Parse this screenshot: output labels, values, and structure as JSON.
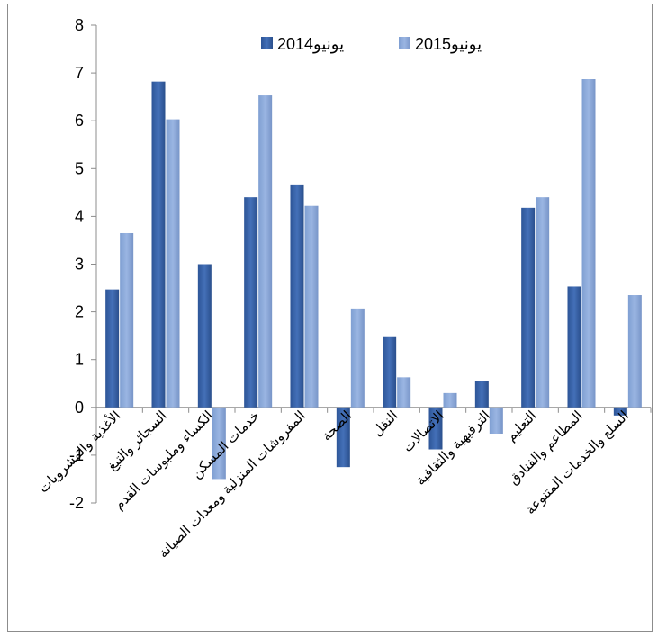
{
  "chart_data": {
    "type": "bar",
    "title": "",
    "xlabel": "",
    "ylabel": "",
    "ylim": [
      -2,
      8
    ],
    "yticks": [
      -2,
      -1,
      0,
      1,
      2,
      3,
      4,
      5,
      6,
      7,
      8
    ],
    "grid": false,
    "legend_position": "top-right",
    "categories": [
      "الأغذية والمشروبات",
      "السجائر والتبغ",
      "الكساء وملبوسات القدم",
      "خدمات المسكن",
      "المفروشات المنزلية ومعدات الصيانة",
      "الصحة",
      "النقل",
      "الاتصالات",
      "الترفيهية والثقافية",
      "التعليم",
      "المطاعم والفنادق",
      "السلع والخدمات المتنوعة"
    ],
    "series": [
      {
        "name": "يونيو2014",
        "color": "#3a62a6",
        "values": [
          2.47,
          6.82,
          3.0,
          4.4,
          4.65,
          -1.25,
          1.47,
          -0.88,
          0.55,
          4.18,
          2.53,
          -0.17
        ]
      },
      {
        "name": "يونيو2015",
        "color": "#8aa8d8",
        "values": [
          3.65,
          6.03,
          -1.5,
          6.53,
          4.22,
          2.07,
          0.63,
          0.3,
          -0.55,
          4.4,
          6.87,
          2.35
        ]
      }
    ]
  }
}
